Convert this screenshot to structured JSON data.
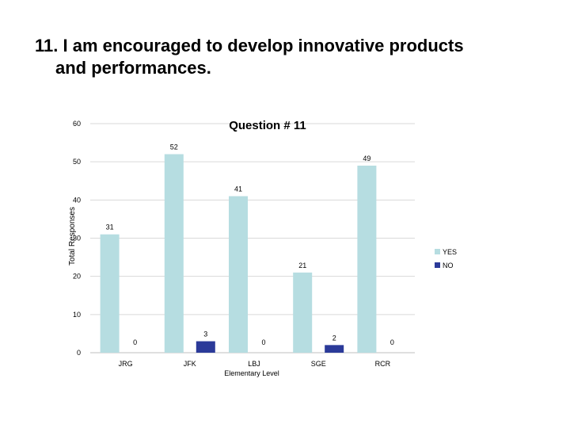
{
  "slide": {
    "title_line1": "11.  I am encouraged to develop innovative products",
    "title_line2": "and performances."
  },
  "colors": {
    "yes": "#b6dde1",
    "no": "#2b3a99",
    "grid": "#d9d9d9",
    "axis": "#bfbfbf"
  },
  "chart_data": {
    "type": "bar",
    "title": "Question # 11",
    "xlabel": "Elementary Level",
    "ylabel": "Total Responses",
    "categories": [
      "JRG",
      "JFK",
      "LBJ",
      "SGE",
      "RCR"
    ],
    "series": [
      {
        "name": "YES",
        "values": [
          31,
          52,
          41,
          21,
          49
        ]
      },
      {
        "name": "NO",
        "values": [
          0,
          3,
          0,
          2,
          0
        ]
      }
    ],
    "ylim": [
      0,
      60
    ],
    "yticks": [
      0,
      10,
      20,
      30,
      40,
      50,
      60
    ],
    "grid": true,
    "legend": "right"
  }
}
